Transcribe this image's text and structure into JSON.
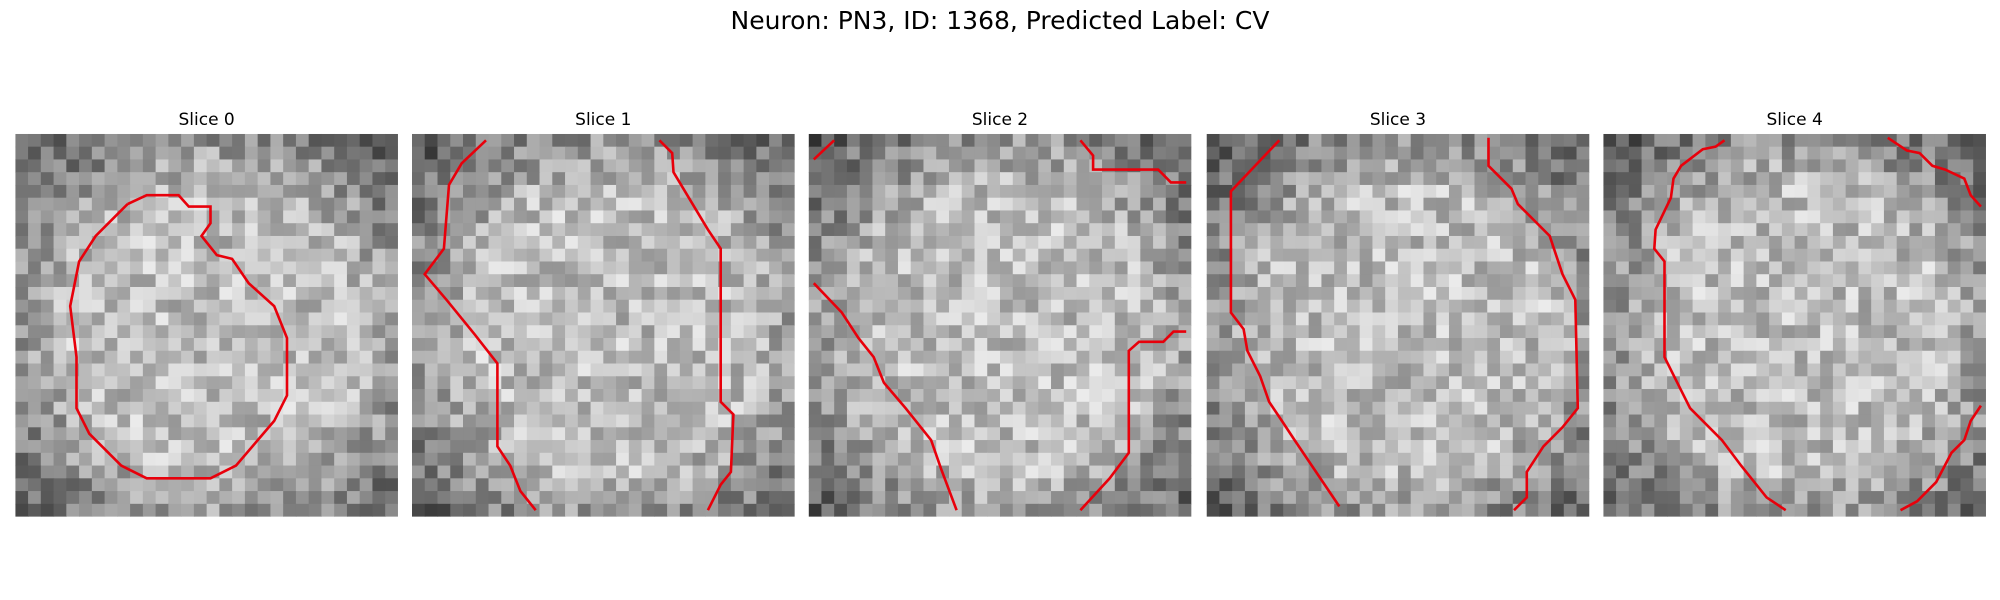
{
  "figure": {
    "title": "Neuron: PN3, ID: 1368, Predicted Label: CV",
    "panels": [
      {
        "title": "Slice 0"
      },
      {
        "title": "Slice 1"
      },
      {
        "title": "Slice 2"
      },
      {
        "title": "Slice 3"
      },
      {
        "title": "Slice 4"
      }
    ]
  }
}
